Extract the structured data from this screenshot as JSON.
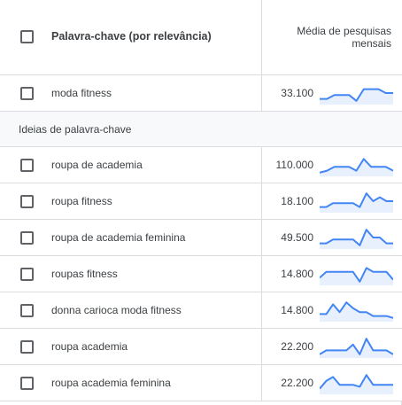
{
  "header": {
    "keyword_col_label": "Palavra-chave (por relevância)",
    "avg_col_label_line1": "Média de pesquisas",
    "avg_col_label_line2": "mensais"
  },
  "section_label": "Ideias de palavra-chave",
  "colors": {
    "sparkline_stroke": "#4285f4",
    "sparkline_fill": "#e8f0fe",
    "border": "#dadce0",
    "section_bg": "#f8f9fa"
  },
  "rows": [
    {
      "keyword": "moda fitness",
      "avg": "33.100",
      "trend": [
        2,
        2,
        4,
        4,
        4,
        1,
        7,
        7,
        7,
        5,
        5
      ]
    },
    {
      "keyword": "roupa de academia",
      "avg": "110.000",
      "trend": [
        1,
        2,
        4,
        4,
        4,
        2,
        8,
        4,
        4,
        4,
        2
      ]
    },
    {
      "keyword": "roupa fitness",
      "avg": "18.100",
      "trend": [
        2,
        2,
        4,
        4,
        4,
        4,
        2,
        9,
        5,
        7,
        5,
        5
      ]
    },
    {
      "keyword": "roupa de academia feminina",
      "avg": "49.500",
      "trend": [
        2,
        2,
        4,
        4,
        4,
        4,
        1,
        9,
        5,
        5,
        2,
        2
      ]
    },
    {
      "keyword": "roupas fitness",
      "avg": "14.800",
      "trend": [
        3,
        6,
        6,
        6,
        6,
        6,
        1,
        8,
        6,
        6,
        6,
        2
      ]
    },
    {
      "keyword": "donna carioca moda fitness",
      "avg": "14.800",
      "trend": [
        3,
        3,
        8,
        4,
        9,
        6,
        4,
        4,
        2,
        2,
        2,
        1
      ]
    },
    {
      "keyword": "roupa academia",
      "avg": "22.200",
      "trend": [
        1,
        3,
        3,
        3,
        3,
        6,
        1,
        9,
        3,
        3,
        3,
        1
      ]
    },
    {
      "keyword": "roupa academia feminina",
      "avg": "22.200",
      "trend": [
        2,
        6,
        8,
        4,
        4,
        4,
        3,
        9,
        4,
        4,
        4,
        4
      ]
    }
  ]
}
